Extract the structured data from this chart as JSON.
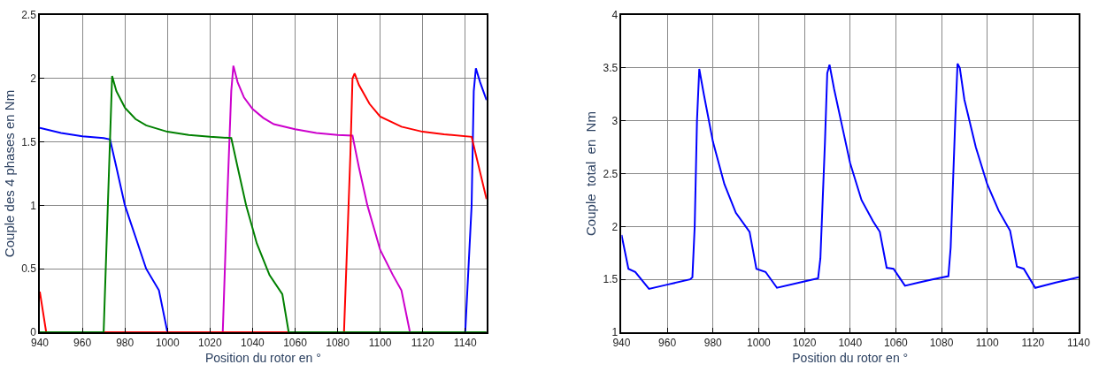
{
  "chart_data": [
    {
      "type": "line",
      "xlabel": "Position du rotor en °",
      "ylabel": "Couple des 4 phases en Nm",
      "xlim": [
        940,
        1150
      ],
      "xticks": [
        940,
        960,
        980,
        1000,
        1020,
        1040,
        1060,
        1080,
        1100,
        1120,
        1140
      ],
      "ylim": [
        0,
        2.5
      ],
      "yticks": [
        0,
        0.5,
        1,
        1.5,
        2,
        2.5
      ],
      "grid": true,
      "marker": "none",
      "line_style": "solid",
      "series": [
        {
          "color": "#0000ff",
          "x": [
            940,
            950,
            960,
            970,
            973,
            976,
            980,
            985,
            990,
            996,
            1000,
            1140,
            1143,
            1144,
            1145,
            1147,
            1150
          ],
          "values": [
            1.61,
            1.57,
            1.545,
            1.53,
            1.52,
            1.3,
            1.0,
            0.75,
            0.5,
            0.33,
            0,
            0,
            1.0,
            1.9,
            2.08,
            1.97,
            1.83
          ]
        },
        {
          "color": "#cc00cc",
          "x": [
            940,
            1026,
            1028,
            1030,
            1031,
            1033,
            1036,
            1040,
            1045,
            1050,
            1060,
            1070,
            1080,
            1087,
            1090,
            1094,
            1100,
            1106,
            1110,
            1114,
            1150
          ],
          "values": [
            0,
            0,
            1.0,
            1.9,
            2.1,
            1.97,
            1.85,
            1.76,
            1.69,
            1.64,
            1.6,
            1.57,
            1.555,
            1.55,
            1.3,
            1.0,
            0.65,
            0.45,
            0.33,
            0,
            0
          ]
        },
        {
          "color": "#ff0000",
          "x": [
            940,
            943,
            1083,
            1086,
            1087,
            1088,
            1090,
            1095,
            1100,
            1110,
            1120,
            1130,
            1143,
            1150
          ],
          "values": [
            0.32,
            0,
            0,
            1.4,
            2.0,
            2.04,
            1.95,
            1.8,
            1.7,
            1.62,
            1.58,
            1.56,
            1.54,
            1.05
          ]
        },
        {
          "color": "#008000",
          "x": [
            940,
            970,
            974,
            976,
            980,
            985,
            990,
            1000,
            1010,
            1020,
            1030,
            1033,
            1037,
            1042,
            1048,
            1054,
            1057,
            1150
          ],
          "values": [
            0,
            0,
            2.02,
            1.9,
            1.77,
            1.68,
            1.63,
            1.58,
            1.555,
            1.54,
            1.53,
            1.3,
            1.0,
            0.7,
            0.45,
            0.3,
            0,
            0
          ]
        }
      ]
    },
    {
      "type": "line",
      "xlabel": "Position du rotor en °",
      "ylabel": "Couple  total  en  Nm",
      "xlim": [
        940,
        1140
      ],
      "xticks": [
        940,
        960,
        980,
        1000,
        1020,
        1040,
        1060,
        1080,
        1100,
        1120,
        1140
      ],
      "ylim": [
        1,
        4
      ],
      "yticks": [
        1,
        1.5,
        2,
        2.5,
        3,
        3.5,
        4
      ],
      "grid": true,
      "marker": "none",
      "line_style": "solid",
      "series": [
        {
          "color": "#0000ff",
          "x": [
            940,
            943,
            946,
            952,
            960,
            970,
            971,
            972,
            973,
            974,
            976,
            980,
            985,
            990,
            996,
            999,
            1003,
            1008,
            1020,
            1026,
            1027,
            1029,
            1030,
            1031,
            1033,
            1037,
            1040,
            1045,
            1050,
            1053,
            1056,
            1059,
            1064,
            1070,
            1076,
            1083,
            1084,
            1086,
            1087,
            1088,
            1090,
            1095,
            1100,
            1105,
            1110,
            1113,
            1116,
            1121,
            1130,
            1140
          ],
          "values": [
            1.92,
            1.6,
            1.57,
            1.41,
            1.45,
            1.5,
            1.52,
            2.0,
            3.0,
            3.49,
            3.25,
            2.8,
            2.4,
            2.13,
            1.95,
            1.6,
            1.57,
            1.42,
            1.48,
            1.51,
            1.7,
            2.8,
            3.45,
            3.53,
            3.3,
            2.9,
            2.6,
            2.25,
            2.05,
            1.95,
            1.61,
            1.6,
            1.44,
            1.47,
            1.5,
            1.53,
            1.8,
            3.0,
            3.54,
            3.5,
            3.2,
            2.75,
            2.4,
            2.15,
            1.96,
            1.62,
            1.6,
            1.42,
            1.47,
            1.52
          ]
        }
      ]
    }
  ]
}
